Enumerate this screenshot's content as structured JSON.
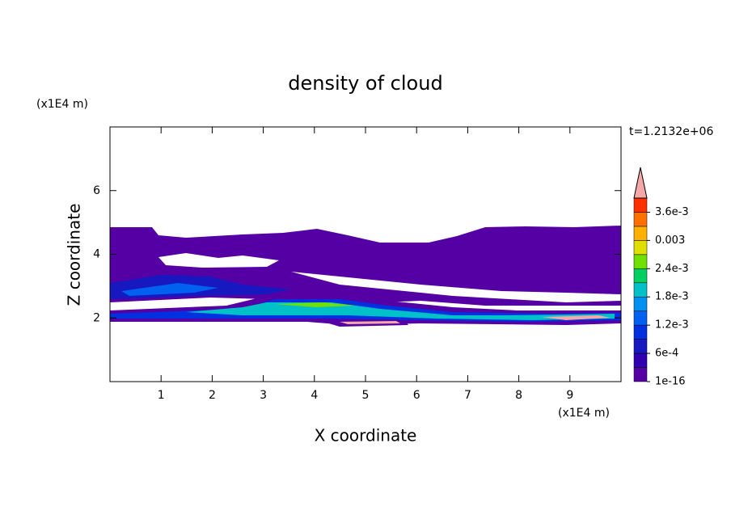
{
  "chart_data": {
    "type": "contour",
    "title": "density of cloud",
    "time_label": "t=1.2132e+06",
    "xlabel": "X coordinate",
    "ylabel": "Z coordinate",
    "x_unit": "(x1E4 m)",
    "y_unit": "(x1E4 m)",
    "xlim": [
      0,
      10
    ],
    "ylim": [
      0,
      8
    ],
    "xticks": [
      1,
      2,
      3,
      4,
      5,
      6,
      7,
      8,
      9
    ],
    "yticks": [
      2,
      4,
      6
    ],
    "colorbar": {
      "lim": [
        0,
        0.0039
      ],
      "colors": [
        "#5500a5",
        "#3000b0",
        "#1818c0",
        "#0030e0",
        "#0060f0",
        "#0090f0",
        "#00c0c8",
        "#00d060",
        "#70e000",
        "#e0e000",
        "#ffb000",
        "#ff7000",
        "#ff3000"
      ],
      "over_color": "#f4a8a8",
      "ticks": [
        {
          "value": 1e-16,
          "label": "1e-16"
        },
        {
          "value": 0.0006,
          "label": "6e-4"
        },
        {
          "value": 0.0012,
          "label": "1.2e-3"
        },
        {
          "value": 0.0018,
          "label": "1.8e-3"
        },
        {
          "value": 0.0024,
          "label": "2.4e-3"
        },
        0.003,
        {
          "value": 0.0036,
          "label": "3.6e-3"
        }
      ]
    }
  }
}
